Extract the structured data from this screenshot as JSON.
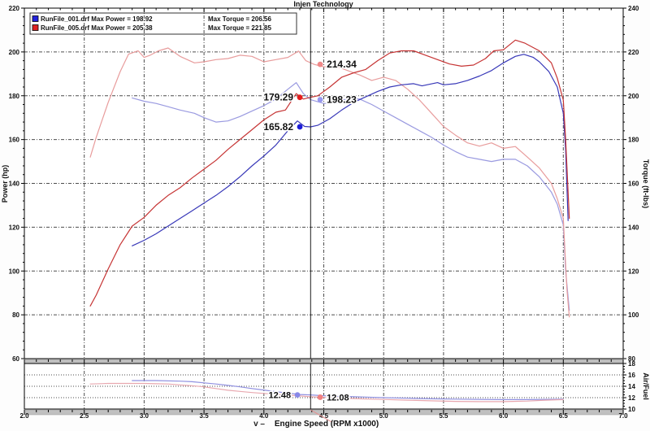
{
  "window_title": "Injen Technology",
  "legend": {
    "rows": [
      {
        "swatch_color": "#2222dd",
        "file": "RunFile_001.drf",
        "max_power": "Max Power = 198.92",
        "max_torque": "Max Torque = 206.56"
      },
      {
        "swatch_color": "#dd2222",
        "file": "RunFile_005.drf",
        "max_power": "Max Power = 205.38",
        "max_torque": "Max Torque = 221.85"
      }
    ]
  },
  "x_axis": {
    "label": "Engine Speed (RPM x1000)",
    "selector_prefix": "v –",
    "min": 2.0,
    "max": 7.0,
    "major_step": 0.5,
    "minor_step": 0.1,
    "tick_labels": [
      "2.0",
      "2.5",
      "3.0",
      "3.5",
      "4.0",
      "4.5",
      "5.0",
      "5.5",
      "6.0",
      "6.5",
      "7.0"
    ]
  },
  "cursor": {
    "rpm": 4.39,
    "line_color": "#1a1a1a",
    "pointer_color": "#e89090"
  },
  "grid_color": "#4d4d4d",
  "chart_data": [
    {
      "type": "line",
      "title": "Injen Technology",
      "legend_position": "top-left",
      "grid": true,
      "y_left": {
        "label": "Power (hp)",
        "min": 60,
        "max": 220,
        "major_step": 20,
        "minor_step": 4,
        "tick_labels": [
          "220",
          "200",
          "180",
          "160",
          "140",
          "120",
          "100",
          "80",
          "60"
        ]
      },
      "y_right": {
        "label": "Torque (ft-lbs)",
        "min": 80,
        "max": 240,
        "major_step": 20,
        "minor_step": 4,
        "tick_labels": [
          "240",
          "220",
          "200",
          "180",
          "160",
          "140",
          "120",
          "100",
          "80"
        ]
      },
      "series": [
        {
          "name": "RunFile_001 Torque",
          "axis": "right",
          "color": "#9a9ae0",
          "points": [
            [
              2.9,
              199
            ],
            [
              3.0,
              197.5
            ],
            [
              3.1,
              196.5
            ],
            [
              3.2,
              195
            ],
            [
              3.3,
              193.5
            ],
            [
              3.42,
              192
            ],
            [
              3.5,
              190
            ],
            [
              3.6,
              188
            ],
            [
              3.7,
              188.5
            ],
            [
              3.8,
              190.5
            ],
            [
              3.9,
              193
            ],
            [
              4.0,
              195.5
            ],
            [
              4.1,
              198.5
            ],
            [
              4.2,
              203
            ],
            [
              4.27,
              206
            ],
            [
              4.33,
              201
            ],
            [
              4.39,
              198.2
            ],
            [
              4.5,
              196.5
            ],
            [
              4.6,
              196.5
            ],
            [
              4.7,
              199
            ],
            [
              4.8,
              198.5
            ],
            [
              4.9,
              196
            ],
            [
              5.0,
              193
            ],
            [
              5.1,
              190
            ],
            [
              5.2,
              187
            ],
            [
              5.3,
              184
            ],
            [
              5.4,
              181
            ],
            [
              5.5,
              177.5
            ],
            [
              5.6,
              174.5
            ],
            [
              5.7,
              172
            ],
            [
              5.8,
              171
            ],
            [
              5.9,
              170
            ],
            [
              6.0,
              171
            ],
            [
              6.1,
              171
            ],
            [
              6.2,
              168
            ],
            [
              6.3,
              163
            ],
            [
              6.4,
              156
            ],
            [
              6.45,
              150.5
            ],
            [
              6.5,
              141
            ],
            [
              6.52,
              120
            ],
            [
              6.55,
              102
            ]
          ]
        },
        {
          "name": "RunFile_005 Torque",
          "axis": "right",
          "color": "#e89c9c",
          "points": [
            [
              2.55,
              172
            ],
            [
              2.6,
              181
            ],
            [
              2.7,
              197
            ],
            [
              2.8,
              211
            ],
            [
              2.87,
              219
            ],
            [
              2.95,
              220.5
            ],
            [
              3.0,
              217.5
            ],
            [
              3.05,
              218.5
            ],
            [
              3.12,
              220.5
            ],
            [
              3.2,
              221.8
            ],
            [
              3.3,
              218
            ],
            [
              3.42,
              215
            ],
            [
              3.5,
              215.5
            ],
            [
              3.6,
              216.5
            ],
            [
              3.7,
              217
            ],
            [
              3.8,
              218.5
            ],
            [
              3.9,
              218
            ],
            [
              4.0,
              215.5
            ],
            [
              4.1,
              216.5
            ],
            [
              4.2,
              217.5
            ],
            [
              4.29,
              220.4
            ],
            [
              4.35,
              216
            ],
            [
              4.42,
              214.3
            ],
            [
              4.5,
              213.2
            ],
            [
              4.6,
              213.5
            ],
            [
              4.7,
              211.5
            ],
            [
              4.8,
              209.5
            ],
            [
              4.9,
              207
            ],
            [
              5.0,
              208.5
            ],
            [
              5.1,
              207
            ],
            [
              5.2,
              203
            ],
            [
              5.3,
              198
            ],
            [
              5.4,
              192
            ],
            [
              5.5,
              186
            ],
            [
              5.6,
              182
            ],
            [
              5.7,
              178.5
            ],
            [
              5.8,
              177
            ],
            [
              5.9,
              178.5
            ],
            [
              6.0,
              176
            ],
            [
              6.1,
              176.8
            ],
            [
              6.2,
              172
            ],
            [
              6.3,
              167
            ],
            [
              6.4,
              160
            ],
            [
              6.45,
              153
            ],
            [
              6.5,
              144
            ],
            [
              6.53,
              112
            ],
            [
              6.55,
              99
            ]
          ]
        },
        {
          "name": "RunFile_001 Power",
          "axis": "left",
          "color": "#3838b8",
          "points": [
            [
              2.9,
              111.5
            ],
            [
              3.0,
              114
            ],
            [
              3.1,
              117
            ],
            [
              3.2,
              120.5
            ],
            [
              3.3,
              124
            ],
            [
              3.4,
              127.5
            ],
            [
              3.5,
              131
            ],
            [
              3.6,
              134.5
            ],
            [
              3.7,
              138.5
            ],
            [
              3.8,
              143
            ],
            [
              3.9,
              148
            ],
            [
              4.0,
              152.5
            ],
            [
              4.1,
              157.5
            ],
            [
              4.2,
              164
            ],
            [
              4.28,
              168.5
            ],
            [
              4.34,
              166
            ],
            [
              4.39,
              165.8
            ],
            [
              4.45,
              166.5
            ],
            [
              4.55,
              169.5
            ],
            [
              4.65,
              173.5
            ],
            [
              4.75,
              177
            ],
            [
              4.85,
              179.5
            ],
            [
              4.95,
              182
            ],
            [
              5.05,
              184
            ],
            [
              5.15,
              185
            ],
            [
              5.25,
              185.5
            ],
            [
              5.32,
              184.5
            ],
            [
              5.45,
              186
            ],
            [
              5.5,
              185
            ],
            [
              5.6,
              185.5
            ],
            [
              5.7,
              187
            ],
            [
              5.8,
              189
            ],
            [
              5.9,
              191.5
            ],
            [
              6.0,
              195
            ],
            [
              6.1,
              198
            ],
            [
              6.17,
              198.9
            ],
            [
              6.25,
              197.5
            ],
            [
              6.3,
              195.5
            ],
            [
              6.38,
              191
            ],
            [
              6.45,
              184
            ],
            [
              6.5,
              172
            ],
            [
              6.52,
              155
            ],
            [
              6.54,
              123
            ]
          ]
        },
        {
          "name": "RunFile_005 Power",
          "axis": "left",
          "color": "#c63434",
          "points": [
            [
              2.55,
              84
            ],
            [
              2.6,
              89
            ],
            [
              2.7,
              101
            ],
            [
              2.8,
              112
            ],
            [
              2.9,
              120.5
            ],
            [
              3.0,
              124.5
            ],
            [
              3.1,
              130
            ],
            [
              3.2,
              134.5
            ],
            [
              3.3,
              138
            ],
            [
              3.4,
              142.5
            ],
            [
              3.5,
              146.5
            ],
            [
              3.6,
              150.5
            ],
            [
              3.7,
              155.5
            ],
            [
              3.8,
              160
            ],
            [
              3.9,
              164.5
            ],
            [
              4.0,
              169
            ],
            [
              4.1,
              172.5
            ],
            [
              4.18,
              173.5
            ],
            [
              4.27,
              181
            ],
            [
              4.33,
              178.5
            ],
            [
              4.39,
              179.3
            ],
            [
              4.45,
              180
            ],
            [
              4.55,
              184
            ],
            [
              4.65,
              188.5
            ],
            [
              4.75,
              190.5
            ],
            [
              4.85,
              192
            ],
            [
              4.95,
              196
            ],
            [
              5.05,
              199.5
            ],
            [
              5.15,
              200.5
            ],
            [
              5.25,
              200.5
            ],
            [
              5.35,
              198.5
            ],
            [
              5.45,
              196.5
            ],
            [
              5.55,
              194.5
            ],
            [
              5.65,
              193.5
            ],
            [
              5.75,
              194
            ],
            [
              5.85,
              197
            ],
            [
              5.92,
              200.5
            ],
            [
              6.0,
              201
            ],
            [
              6.1,
              205.4
            ],
            [
              6.18,
              204
            ],
            [
              6.3,
              200.5
            ],
            [
              6.4,
              195
            ],
            [
              6.45,
              188
            ],
            [
              6.5,
              178
            ],
            [
              6.52,
              160
            ],
            [
              6.55,
              124
            ]
          ]
        }
      ],
      "markers": [
        {
          "text": "214.34",
          "rpm": 4.47,
          "value": 214.34,
          "axis": "right",
          "color": "#f08888",
          "side": "right"
        },
        {
          "text": "198.23",
          "rpm": 4.47,
          "value": 198.23,
          "axis": "right",
          "color": "#9898ee",
          "side": "right"
        },
        {
          "text": "179.29",
          "rpm": 4.3,
          "value": 179.29,
          "axis": "left",
          "color": "#e41c1c",
          "side": "left"
        },
        {
          "text": "165.82",
          "rpm": 4.3,
          "value": 165.82,
          "axis": "left",
          "color": "#1c1cd8",
          "side": "left"
        }
      ]
    },
    {
      "type": "line",
      "grid": true,
      "y_right": {
        "label": "Air/Fuel",
        "min": 10,
        "max": 18,
        "major_step": 2,
        "minor_step": 0.5,
        "tick_labels": [
          "18",
          "16",
          "14",
          "12",
          "10"
        ]
      },
      "series": [
        {
          "name": "RunFile_001 Air/Fuel",
          "axis": "right",
          "color": "#9090e0",
          "points": [
            [
              2.9,
              15.0
            ],
            [
              3.1,
              15.0
            ],
            [
              3.3,
              14.9
            ],
            [
              3.4,
              14.8
            ],
            [
              3.5,
              14.6
            ],
            [
              3.6,
              14.4
            ],
            [
              3.7,
              14.15
            ],
            [
              3.8,
              13.9
            ],
            [
              3.9,
              13.6
            ],
            [
              4.0,
              13.35
            ],
            [
              4.1,
              13.05
            ],
            [
              4.2,
              12.8
            ],
            [
              4.3,
              12.55
            ],
            [
              4.39,
              12.48
            ],
            [
              4.5,
              12.35
            ],
            [
              4.6,
              12.25
            ],
            [
              4.7,
              12.2
            ],
            [
              4.85,
              12.1
            ],
            [
              5.0,
              12.0
            ],
            [
              5.2,
              11.9
            ],
            [
              5.4,
              11.8
            ],
            [
              5.6,
              11.75
            ],
            [
              5.8,
              11.7
            ],
            [
              6.0,
              11.65
            ],
            [
              6.2,
              11.65
            ],
            [
              6.35,
              11.7
            ],
            [
              6.5,
              11.75
            ]
          ]
        },
        {
          "name": "RunFile_005 Air/Fuel",
          "axis": "right",
          "color": "#e8a8b0",
          "points": [
            [
              2.55,
              14.4
            ],
            [
              2.7,
              14.5
            ],
            [
              2.9,
              14.5
            ],
            [
              3.0,
              14.5
            ],
            [
              3.1,
              14.45
            ],
            [
              3.2,
              14.4
            ],
            [
              3.3,
              14.25
            ],
            [
              3.4,
              14.1
            ],
            [
              3.5,
              13.9
            ],
            [
              3.6,
              13.6
            ],
            [
              3.7,
              13.3
            ],
            [
              3.8,
              13.1
            ],
            [
              3.9,
              12.9
            ],
            [
              4.0,
              12.75
            ],
            [
              4.1,
              12.6
            ],
            [
              4.2,
              12.45
            ],
            [
              4.3,
              12.3
            ],
            [
              4.39,
              12.15
            ],
            [
              4.47,
              12.08
            ],
            [
              4.6,
              11.95
            ],
            [
              4.8,
              11.8
            ],
            [
              5.0,
              11.68
            ],
            [
              5.2,
              11.55
            ],
            [
              5.4,
              11.45
            ],
            [
              5.6,
              11.35
            ],
            [
              5.8,
              11.3
            ],
            [
              6.0,
              11.3
            ],
            [
              6.2,
              11.4
            ],
            [
              6.35,
              11.55
            ],
            [
              6.5,
              11.65
            ]
          ]
        }
      ],
      "markers": [
        {
          "text": "12.48",
          "rpm": 4.28,
          "value": 12.48,
          "axis": "right",
          "color": "#8888e8",
          "side": "left"
        },
        {
          "text": "12.08",
          "rpm": 4.47,
          "value": 12.08,
          "axis": "right",
          "color": "#f08080",
          "side": "right"
        }
      ]
    }
  ]
}
